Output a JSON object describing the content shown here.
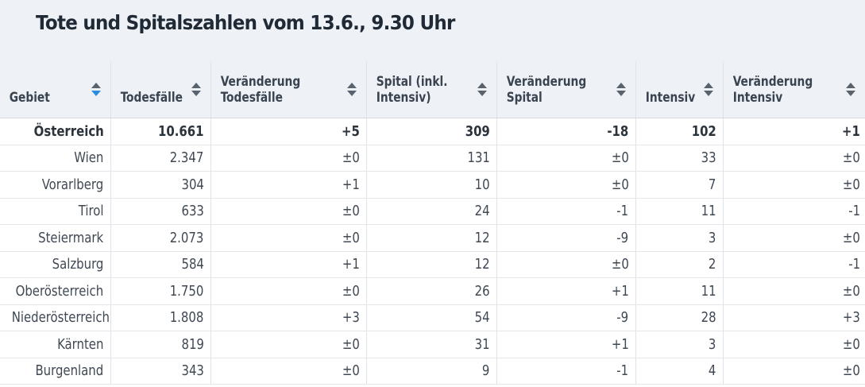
{
  "title": "Tote und Spitalszahlen vom 13.6., 9.30 Uhr",
  "table": {
    "headers": [
      {
        "line1": "Gebiet",
        "line2": "",
        "sort": "descending"
      },
      {
        "line1": "Todesfälle",
        "line2": "",
        "sort": "none"
      },
      {
        "line1": "Veränderung",
        "line2": "Todesfälle",
        "sort": "none"
      },
      {
        "line1": "Spital (inkl.",
        "line2": "Intensiv)",
        "sort": "none"
      },
      {
        "line1": "Veränderung",
        "line2": "Spital",
        "sort": "none"
      },
      {
        "line1": "Intensiv",
        "line2": "",
        "sort": "none"
      },
      {
        "line1": "Veränderung",
        "line2": "Intensiv",
        "sort": "none"
      }
    ],
    "rows": [
      [
        "Österreich",
        "10.661",
        "+5",
        "309",
        "-18",
        "102",
        "+1"
      ],
      [
        "Wien",
        "2.347",
        "±0",
        "131",
        "±0",
        "33",
        "±0"
      ],
      [
        "Vorarlberg",
        "304",
        "+1",
        "10",
        "±0",
        "7",
        "±0"
      ],
      [
        "Tirol",
        "633",
        "±0",
        "24",
        "-1",
        "11",
        "-1"
      ],
      [
        "Steiermark",
        "2.073",
        "±0",
        "12",
        "-9",
        "3",
        "±0"
      ],
      [
        "Salzburg",
        "584",
        "+1",
        "12",
        "±0",
        "2",
        "-1"
      ],
      [
        "Oberösterreich",
        "1.750",
        "±0",
        "26",
        "+1",
        "11",
        "±0"
      ],
      [
        "Niederösterreich",
        "1.808",
        "+3",
        "54",
        "-9",
        "28",
        "+3"
      ],
      [
        "Kärnten",
        "819",
        "±0",
        "31",
        "+1",
        "3",
        "±0"
      ],
      [
        "Burgenland",
        "343",
        "±0",
        "9",
        "-1",
        "4",
        "±0"
      ]
    ]
  },
  "colors": {
    "header_background": "#eef1f5",
    "active_sort_arrow": "#2a8de0",
    "sort_arrow": "#5a636d"
  },
  "icons": {
    "sort": "sort-up-down-icon"
  }
}
